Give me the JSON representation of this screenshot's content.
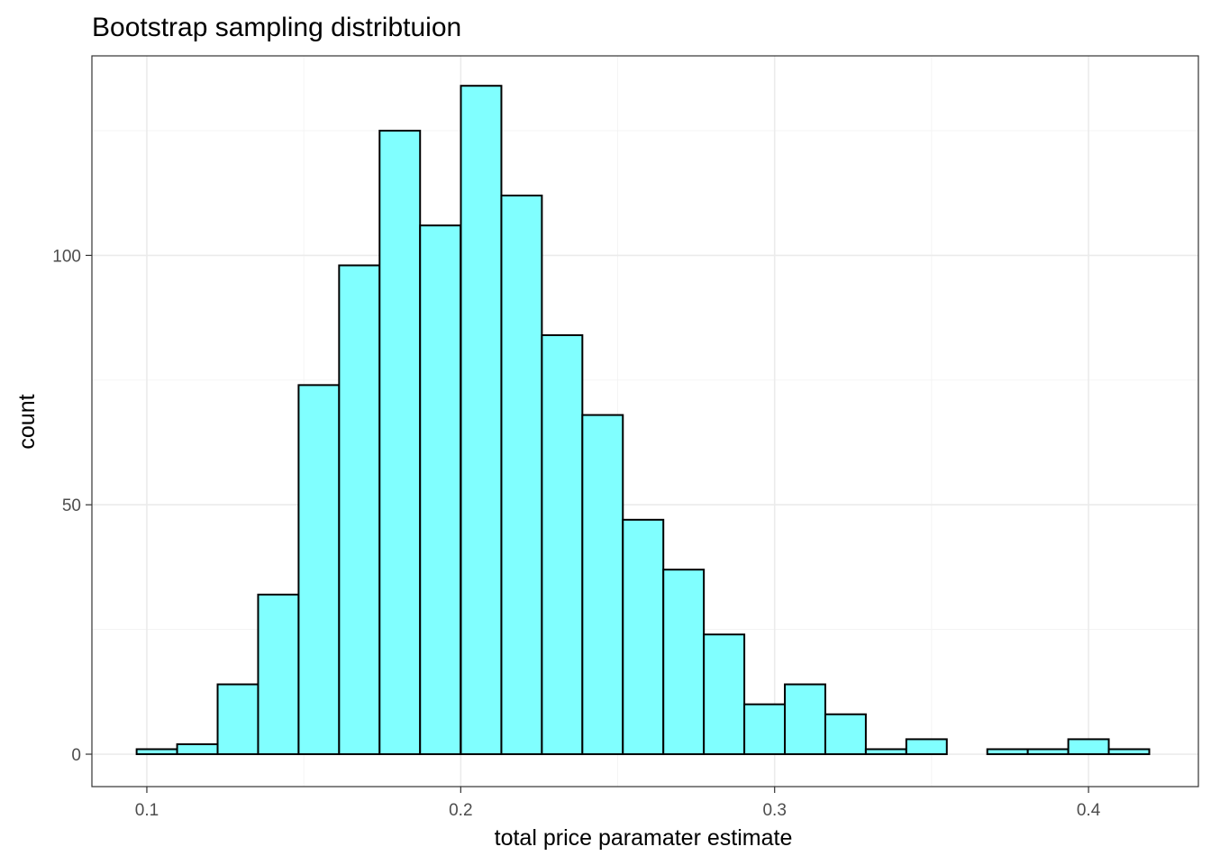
{
  "chart_data": {
    "type": "bar",
    "title": "Bootstrap sampling distribtuion",
    "xlabel": "total price paramater estimate",
    "ylabel": "count",
    "xlim": [
      0.0825,
      0.435
    ],
    "ylim": [
      -6.5,
      140
    ],
    "x_ticks": [
      0.1,
      0.2,
      0.3,
      0.4
    ],
    "x_tick_labels": [
      "0.1",
      "0.2",
      "0.3",
      "0.4"
    ],
    "y_ticks": [
      0,
      50,
      100
    ],
    "y_tick_labels": [
      "0",
      "50",
      "100"
    ],
    "bin_width": 0.0129,
    "bins": [
      {
        "x": 0.1032,
        "count": 1
      },
      {
        "x": 0.1161,
        "count": 2
      },
      {
        "x": 0.129,
        "count": 14
      },
      {
        "x": 0.1419,
        "count": 32
      },
      {
        "x": 0.1548,
        "count": 74
      },
      {
        "x": 0.1677,
        "count": 98
      },
      {
        "x": 0.1806,
        "count": 125
      },
      {
        "x": 0.1935,
        "count": 106
      },
      {
        "x": 0.2065,
        "count": 134
      },
      {
        "x": 0.2194,
        "count": 112
      },
      {
        "x": 0.2323,
        "count": 84
      },
      {
        "x": 0.2452,
        "count": 68
      },
      {
        "x": 0.2581,
        "count": 47
      },
      {
        "x": 0.271,
        "count": 37
      },
      {
        "x": 0.2839,
        "count": 24
      },
      {
        "x": 0.2968,
        "count": 10
      },
      {
        "x": 0.3097,
        "count": 14
      },
      {
        "x": 0.3226,
        "count": 8
      },
      {
        "x": 0.3355,
        "count": 1
      },
      {
        "x": 0.3484,
        "count": 3
      },
      {
        "x": 0.3613,
        "count": 0
      },
      {
        "x": 0.3742,
        "count": 1
      },
      {
        "x": 0.3871,
        "count": 1
      },
      {
        "x": 0.4,
        "count": 3
      },
      {
        "x": 0.4129,
        "count": 1
      }
    ],
    "fill_color": "#80ffff",
    "outline_color": "#000000",
    "grid": true,
    "legend": "none",
    "theme": "bw"
  }
}
